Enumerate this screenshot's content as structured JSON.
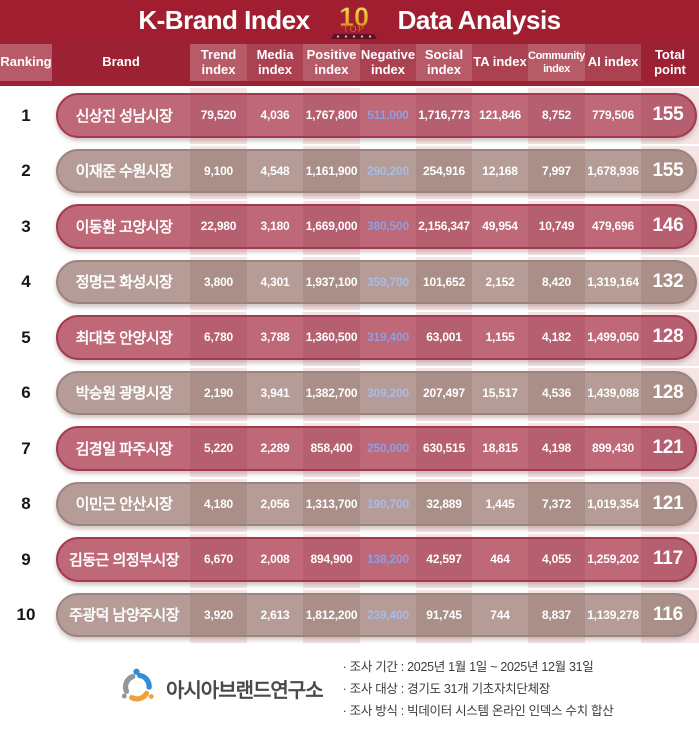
{
  "title": {
    "left": "K-Brand Index",
    "right": "Data Analysis",
    "badge": {
      "word": "TOP",
      "number": "10"
    }
  },
  "table": {
    "columns": [
      {
        "key": "rank",
        "label": "Ranking",
        "shade": "light",
        "band": false
      },
      {
        "key": "brand",
        "label": "Brand",
        "shade": "dark",
        "band": false
      },
      {
        "key": "trend",
        "label": "Trend index",
        "shade": "light",
        "band": true
      },
      {
        "key": "media",
        "label": "Media index",
        "shade": "medium",
        "band": false
      },
      {
        "key": "positive",
        "label": "Positive index",
        "shade": "light",
        "band": true
      },
      {
        "key": "negative",
        "label": "Negative index",
        "shade": "medium",
        "band": false
      },
      {
        "key": "social",
        "label": "Social index",
        "shade": "light",
        "band": true
      },
      {
        "key": "ta",
        "label": "TA index",
        "shade": "medium",
        "band": false
      },
      {
        "key": "community",
        "label": "Community index",
        "shade": "light",
        "band": true
      },
      {
        "key": "ai",
        "label": "AI index",
        "shade": "medium",
        "band": false
      },
      {
        "key": "total",
        "label": "Total point",
        "shade": "dark",
        "band": true
      }
    ],
    "metric_keys": [
      "trend",
      "media",
      "positive",
      "negative",
      "social",
      "ta",
      "community",
      "ai"
    ],
    "rows": [
      {
        "rank": "1",
        "brand": "신상진 성남시장",
        "trend": "79,520",
        "media": "4,036",
        "positive": "1,767,800",
        "negative": "511,000",
        "social": "1,716,773",
        "ta": "121,846",
        "community": "8,752",
        "ai": "779,506",
        "total": "155"
      },
      {
        "rank": "2",
        "brand": "이재준 수원시장",
        "trend": "9,100",
        "media": "4,548",
        "positive": "1,161,900",
        "negative": "290,200",
        "social": "254,916",
        "ta": "12,168",
        "community": "7,997",
        "ai": "1,678,936",
        "total": "155"
      },
      {
        "rank": "3",
        "brand": "이동환 고양시장",
        "trend": "22,980",
        "media": "3,180",
        "positive": "1,669,000",
        "negative": "380,500",
        "social": "2,156,347",
        "ta": "49,954",
        "community": "10,749",
        "ai": "479,696",
        "total": "146"
      },
      {
        "rank": "4",
        "brand": "정명근 화성시장",
        "trend": "3,800",
        "media": "4,301",
        "positive": "1,937,100",
        "negative": "359,700",
        "social": "101,652",
        "ta": "2,152",
        "community": "8,420",
        "ai": "1,319,164",
        "total": "132"
      },
      {
        "rank": "5",
        "brand": "최대호 안양시장",
        "trend": "6,780",
        "media": "3,788",
        "positive": "1,360,500",
        "negative": "319,400",
        "social": "63,001",
        "ta": "1,155",
        "community": "4,182",
        "ai": "1,499,050",
        "total": "128"
      },
      {
        "rank": "6",
        "brand": "박승원 광명시장",
        "trend": "2,190",
        "media": "3,941",
        "positive": "1,382,700",
        "negative": "309,200",
        "social": "207,497",
        "ta": "15,517",
        "community": "4,536",
        "ai": "1,439,088",
        "total": "128"
      },
      {
        "rank": "7",
        "brand": "김경일 파주시장",
        "trend": "5,220",
        "media": "2,289",
        "positive": "858,400",
        "negative": "250,000",
        "social": "630,515",
        "ta": "18,815",
        "community": "4,198",
        "ai": "899,430",
        "total": "121"
      },
      {
        "rank": "8",
        "brand": "이민근 안산시장",
        "trend": "4,180",
        "media": "2,056",
        "positive": "1,313,700",
        "negative": "190,700",
        "social": "32,889",
        "ta": "1,445",
        "community": "7,372",
        "ai": "1,019,354",
        "total": "121"
      },
      {
        "rank": "9",
        "brand": "김동근 의정부시장",
        "trend": "6,670",
        "media": "2,008",
        "positive": "894,900",
        "negative": "138,200",
        "social": "42,597",
        "ta": "464",
        "community": "4,055",
        "ai": "1,259,202",
        "total": "117"
      },
      {
        "rank": "10",
        "brand": "주광덕 남양주시장",
        "trend": "3,920",
        "media": "2,613",
        "positive": "1,812,200",
        "negative": "239,400",
        "social": "91,745",
        "ta": "744",
        "community": "8,837",
        "ai": "1,139,278",
        "total": "116"
      }
    ]
  },
  "footer": {
    "org_name": "아시아브랜드연구소",
    "notes": [
      "· 조사 기간 : 2025년 1월 1일 ~ 2025년 12월 31일",
      "· 조사 대상 : 경기도 31개 기초자치단체장",
      "· 조사 방식 : 빅데이터 시스템 온라인 인덱스 수치 합산"
    ]
  },
  "colors": {
    "title_bar": "#a01e2f",
    "header_dark": "#9c2133",
    "header_medium": "#aa4252",
    "header_light": "#b85b68",
    "row_rose": "#be6878",
    "row_rose_border": "#a23b4f",
    "row_taupe": "#b59c96",
    "row_taupe_border": "#9d837d",
    "column_stripe": "#f5e5e5",
    "negative_blue_rose": "#8c9fe3",
    "negative_blue_taupe": "#a5bceb",
    "badge_gold": "#f2b236",
    "badge_orange": "#f06a2e"
  },
  "chart_data": {
    "type": "table",
    "title": "K-Brand Index Data Analysis",
    "columns": [
      "Ranking",
      "Brand",
      "Trend index",
      "Media index",
      "Positive index",
      "Negative index",
      "Social index",
      "TA index",
      "Community index",
      "AI index",
      "Total point"
    ],
    "rows": [
      [
        1,
        "신상진 성남시장",
        79520,
        4036,
        1767800,
        511000,
        1716773,
        121846,
        8752,
        779506,
        155
      ],
      [
        2,
        "이재준 수원시장",
        9100,
        4548,
        1161900,
        290200,
        254916,
        12168,
        7997,
        1678936,
        155
      ],
      [
        3,
        "이동환 고양시장",
        22980,
        3180,
        1669000,
        380500,
        2156347,
        49954,
        10749,
        479696,
        146
      ],
      [
        4,
        "정명근 화성시장",
        3800,
        4301,
        1937100,
        359700,
        101652,
        2152,
        8420,
        1319164,
        132
      ],
      [
        5,
        "최대호 안양시장",
        6780,
        3788,
        1360500,
        319400,
        63001,
        1155,
        4182,
        1499050,
        128
      ],
      [
        6,
        "박승원 광명시장",
        2190,
        3941,
        1382700,
        309200,
        207497,
        15517,
        4536,
        1439088,
        128
      ],
      [
        7,
        "김경일 파주시장",
        5220,
        2289,
        858400,
        250000,
        630515,
        18815,
        4198,
        899430,
        121
      ],
      [
        8,
        "이민근 안산시장",
        4180,
        2056,
        1313700,
        190700,
        32889,
        1445,
        7372,
        1019354,
        121
      ],
      [
        9,
        "김동근 의정부시장",
        6670,
        2008,
        894900,
        138200,
        42597,
        464,
        4055,
        1259202,
        117
      ],
      [
        10,
        "주광덕 남양주시장",
        3920,
        2613,
        1812200,
        239400,
        91745,
        744,
        8837,
        1139278,
        116
      ]
    ]
  }
}
